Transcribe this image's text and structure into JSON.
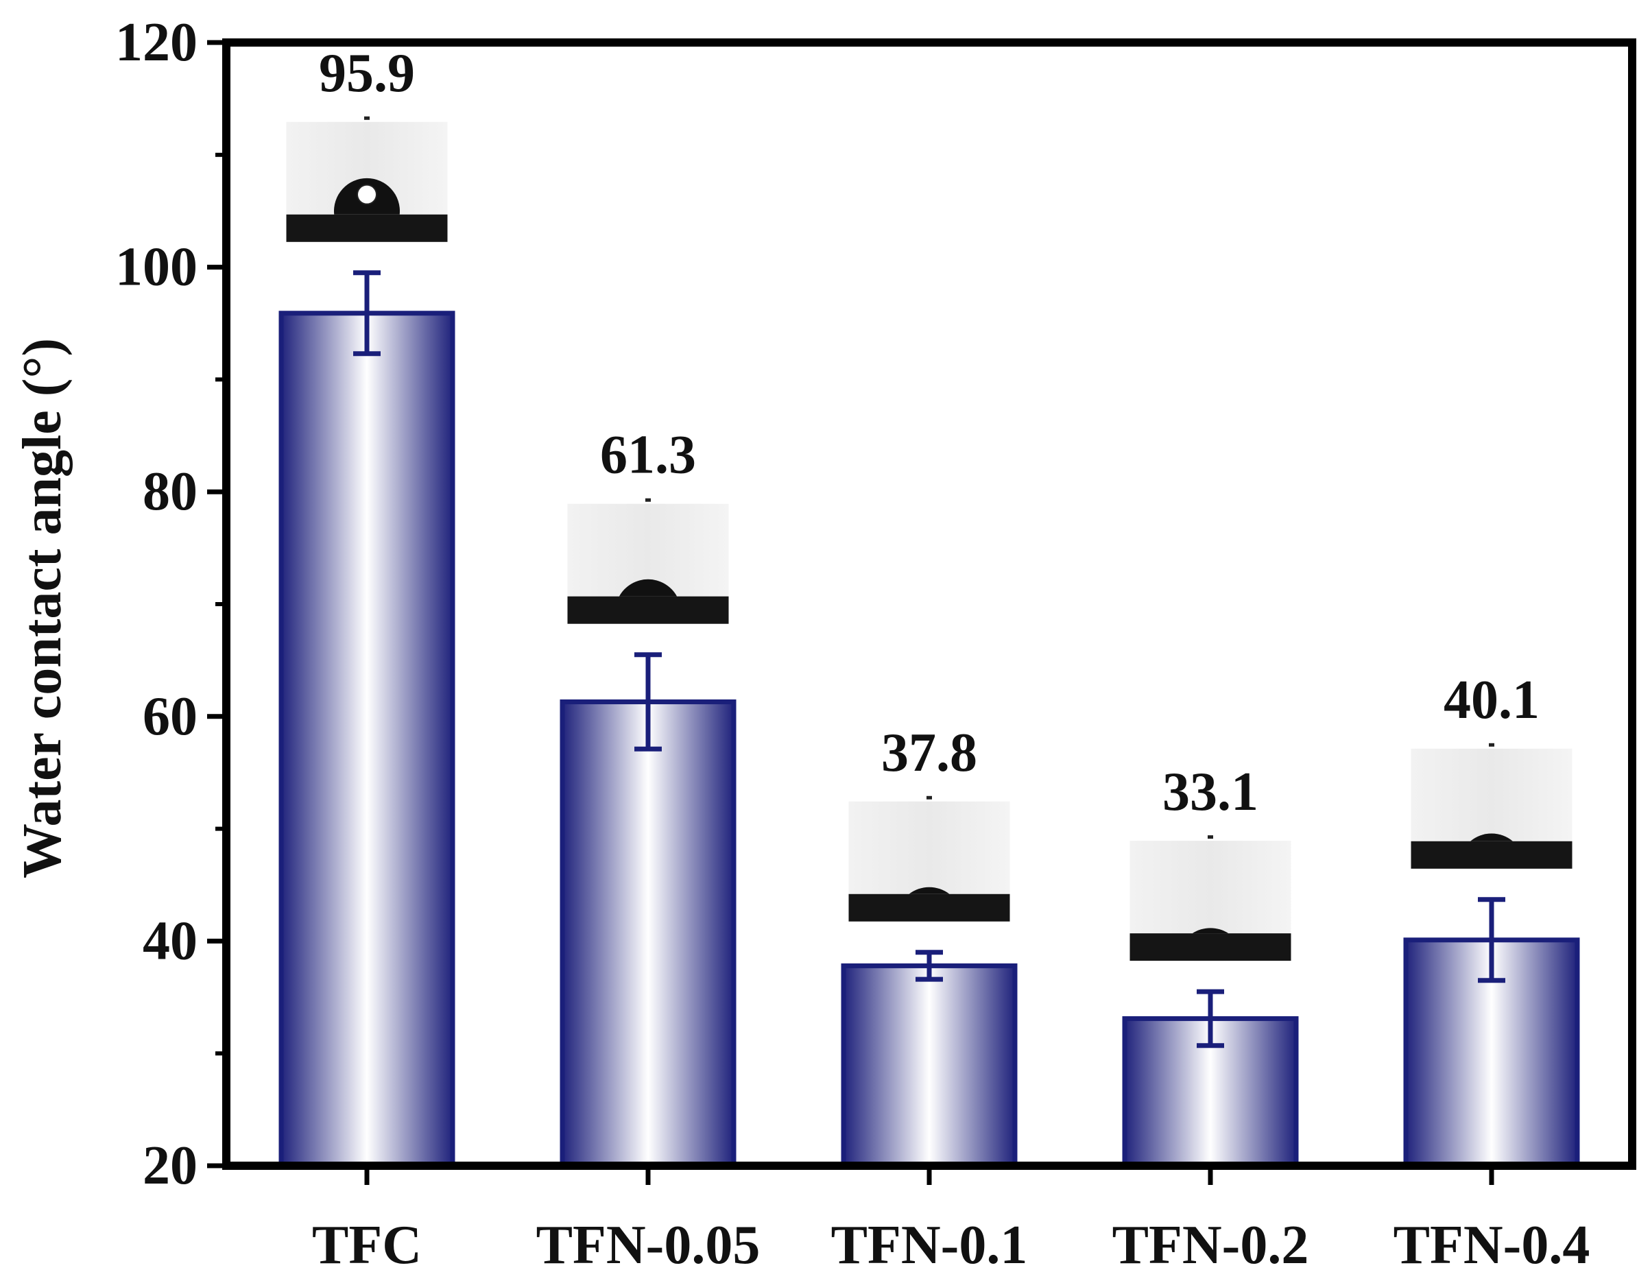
{
  "chart_data": {
    "type": "bar",
    "title": "",
    "xlabel": "",
    "ylabel": "Water contact angle (°)",
    "ylim": [
      20,
      120
    ],
    "yticks": [
      20,
      40,
      60,
      80,
      100,
      120
    ],
    "categories": [
      "TFC",
      "TFN-0.05",
      "TFN-0.1",
      "TFN-0.2",
      "TFN-0.4"
    ],
    "values": [
      95.9,
      61.3,
      37.8,
      33.1,
      40.1
    ],
    "errors": [
      3.6,
      4.2,
      1.2,
      2.4,
      3.6
    ],
    "value_labels": [
      "95.9",
      "61.3",
      "37.8",
      "33.1",
      "40.1"
    ],
    "insets": "water-droplet-photo per bar",
    "grid": false,
    "legend": "none",
    "colors": {
      "bar_edge": "#1a1f7a",
      "bar_dark": "#20237c",
      "bar_light": "#ffffff",
      "error_bar": "#1a1f7a",
      "axis": "#000000"
    }
  }
}
